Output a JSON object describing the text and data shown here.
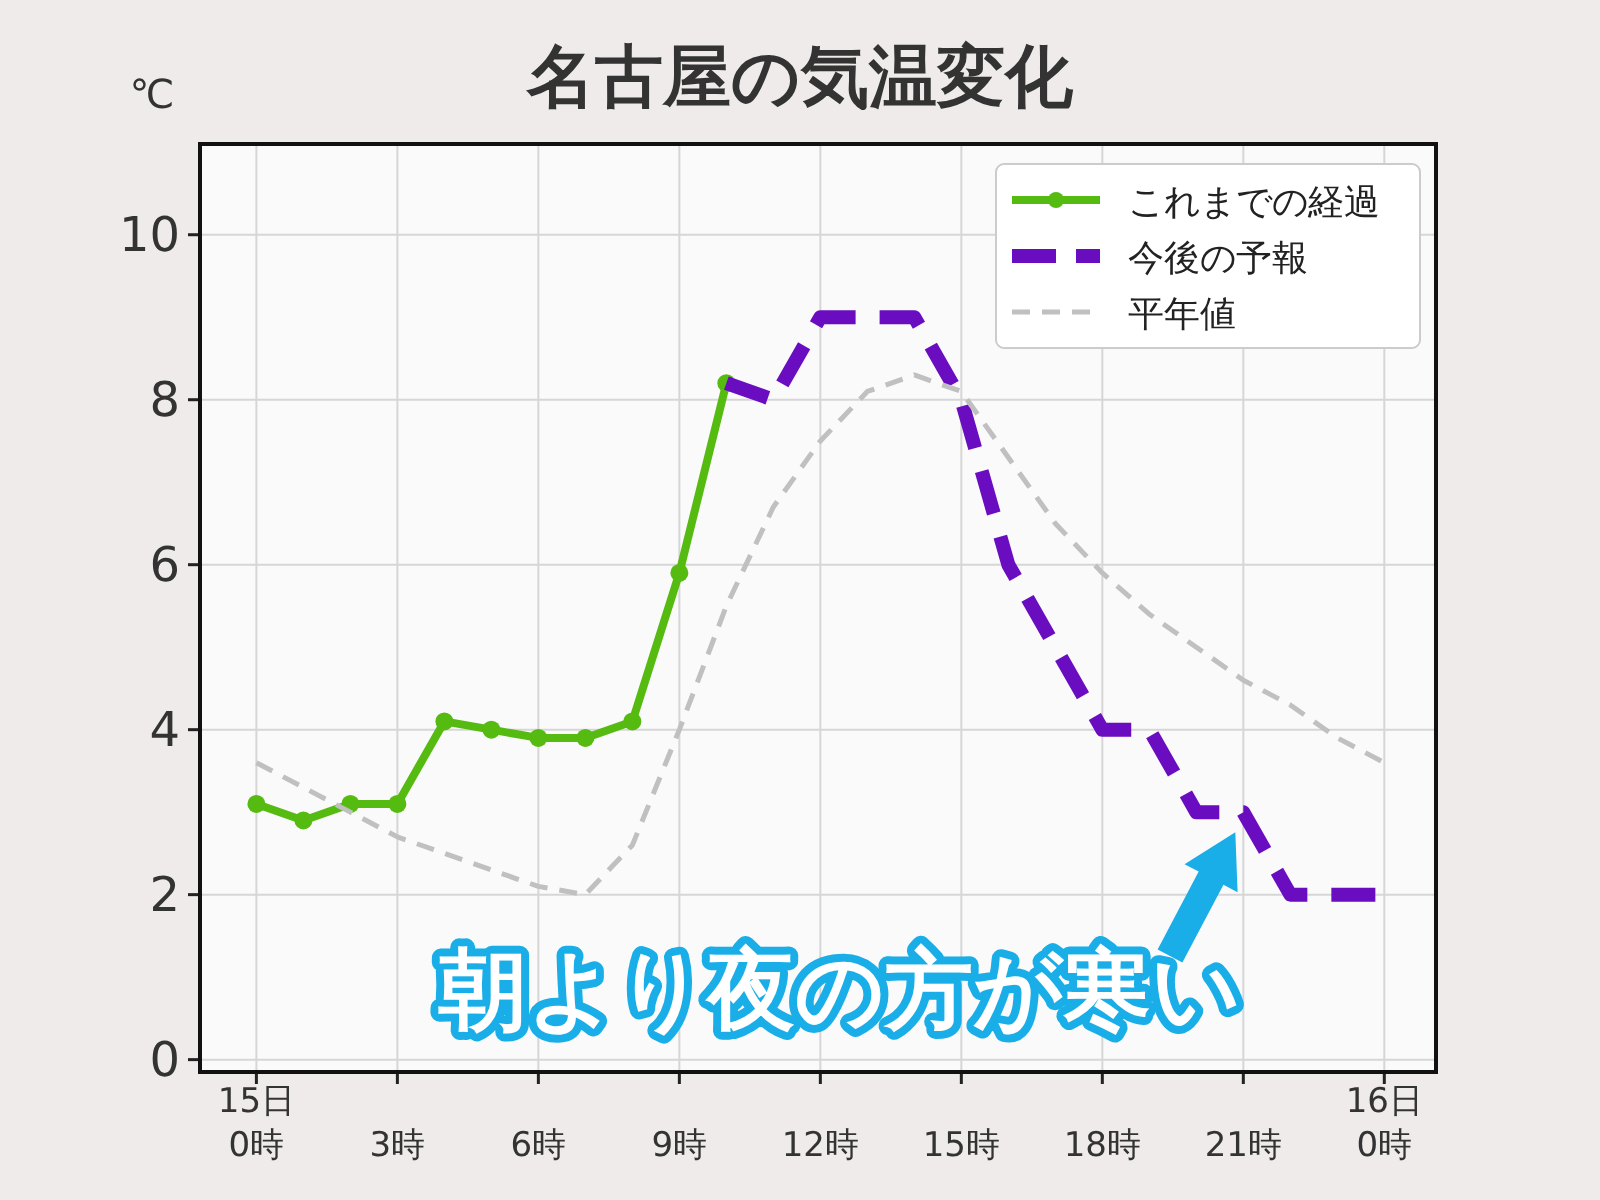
{
  "chart_data": {
    "type": "line",
    "title": "名古屋の気温変化",
    "ylabel": "℃",
    "xlim": [
      -1.2,
      25.1
    ],
    "ylim": [
      -0.15,
      11.1
    ],
    "xticks": [
      {
        "value": 0,
        "label": "15日\n0時"
      },
      {
        "value": 3,
        "label": "3時"
      },
      {
        "value": 6,
        "label": "6時"
      },
      {
        "value": 9,
        "label": "9時"
      },
      {
        "value": 12,
        "label": "12時"
      },
      {
        "value": 15,
        "label": "15時"
      },
      {
        "value": 18,
        "label": "18時"
      },
      {
        "value": 21,
        "label": "21時"
      },
      {
        "value": 24,
        "label": "16日\n0時"
      }
    ],
    "yticks": [
      0,
      2,
      4,
      6,
      8,
      10
    ],
    "grid": true,
    "legend": "top right",
    "series": [
      {
        "name": "これまでの経過",
        "color": "#55bb11",
        "marker": "circle",
        "line_style": "solid",
        "x": [
          0,
          1,
          2,
          3,
          4,
          5,
          6,
          7,
          8,
          9,
          10
        ],
        "values": [
          3.1,
          2.9,
          3.1,
          3.1,
          4.1,
          4.0,
          3.9,
          3.9,
          4.1,
          5.9,
          8.2
        ]
      },
      {
        "name": "今後の予報",
        "color": "#6a0dc0",
        "marker": "none",
        "line_style": "dashed",
        "x": [
          10,
          11,
          12,
          13,
          14,
          15,
          16,
          17,
          18,
          19,
          20,
          21,
          22,
          23,
          24
        ],
        "values": [
          8.2,
          8.0,
          9.0,
          9.0,
          9.0,
          8.0,
          6.0,
          5.0,
          4.0,
          4.0,
          3.0,
          3.0,
          2.0,
          2.0,
          2.0
        ]
      },
      {
        "name": "平年値",
        "color": "#c0c0c0",
        "marker": "none",
        "line_style": "dashed",
        "x": [
          0,
          1,
          2,
          3,
          4,
          5,
          6,
          7,
          8,
          9,
          10,
          11,
          12,
          13,
          14,
          15,
          16,
          17,
          18,
          19,
          20,
          21,
          22,
          23,
          24
        ],
        "values": [
          3.6,
          3.3,
          3.0,
          2.7,
          2.5,
          2.3,
          2.1,
          2.0,
          2.6,
          4.0,
          5.5,
          6.7,
          7.5,
          8.1,
          8.3,
          8.1,
          7.3,
          6.5,
          5.9,
          5.4,
          5.0,
          4.6,
          4.3,
          3.9,
          3.6
        ]
      }
    ],
    "annotations": [
      {
        "text": "朝より夜の方が寒い",
        "x": 21,
        "y": 3
      }
    ]
  }
}
